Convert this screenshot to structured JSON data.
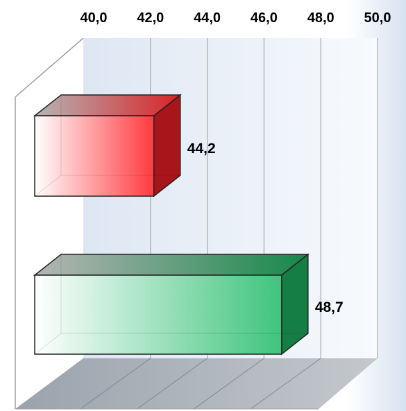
{
  "chart_data": {
    "type": "bar",
    "orientation": "horizontal",
    "three_d": true,
    "title": "",
    "xlabel": "",
    "ylabel": "",
    "xlim": [
      40.0,
      50.0
    ],
    "axis_position": "top",
    "grid": true,
    "legend": "none",
    "tick_labels": [
      "40,0",
      "42,0",
      "44,0",
      "46,0",
      "48,0",
      "50,0"
    ],
    "categories": [
      "",
      ""
    ],
    "values": [
      44.2,
      48.7
    ],
    "value_labels": [
      "44,2",
      "48,7"
    ],
    "bar_colors": [
      "#e8262b",
      "#1f9e57"
    ]
  }
}
